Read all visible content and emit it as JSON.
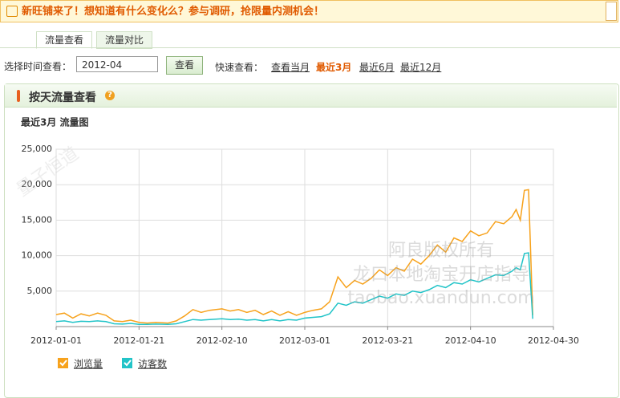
{
  "notice": "新旺铺来了！想知道有什么变化么？参与调研，抢限量内测机会！",
  "tabs": [
    "流量查看",
    "流量对比"
  ],
  "filter": {
    "label": "选择时间查看：",
    "month": "2012-04",
    "button": "查看",
    "quick_label": "快速查看：",
    "quick_links": [
      "查看当月",
      "最近3月",
      "最近6月",
      "最近12月"
    ]
  },
  "panel_title": "按天流量查看",
  "watermarks": [
    "阿良版权所有",
    "龙口本地淘宝开店指导",
    "taobao.xuandun.com",
    "量子恒道"
  ],
  "chart_data": {
    "type": "line",
    "title": "最近3月 流量图",
    "x": [
      "2012-01-01",
      "2012-01-03",
      "2012-01-05",
      "2012-01-07",
      "2012-01-09",
      "2012-01-11",
      "2012-01-13",
      "2012-01-15",
      "2012-01-17",
      "2012-01-19",
      "2012-01-21",
      "2012-01-23",
      "2012-01-25",
      "2012-01-28",
      "2012-01-30",
      "2012-02-01",
      "2012-02-03",
      "2012-02-05",
      "2012-02-07",
      "2012-02-10",
      "2012-02-12",
      "2012-02-14",
      "2012-02-16",
      "2012-02-18",
      "2012-02-20",
      "2012-02-22",
      "2012-02-24",
      "2012-02-26",
      "2012-02-28",
      "2012-03-01",
      "2012-03-03",
      "2012-03-05",
      "2012-03-07",
      "2012-03-09",
      "2012-03-11",
      "2012-03-13",
      "2012-03-15",
      "2012-03-17",
      "2012-03-19",
      "2012-03-21",
      "2012-03-23",
      "2012-03-25",
      "2012-03-27",
      "2012-03-29",
      "2012-03-31",
      "2012-04-02",
      "2012-04-04",
      "2012-04-06",
      "2012-04-08",
      "2012-04-10",
      "2012-04-12",
      "2012-04-14",
      "2012-04-16",
      "2012-04-18",
      "2012-04-20",
      "2012-04-21",
      "2012-04-22",
      "2012-04-23",
      "2012-04-24",
      "2012-04-25"
    ],
    "series": [
      {
        "name": "浏览量",
        "color": "#f7a21c",
        "values": [
          1700,
          1900,
          1200,
          1800,
          1500,
          1900,
          1600,
          800,
          700,
          900,
          600,
          500,
          600,
          500,
          800,
          1500,
          2400,
          2000,
          2300,
          2500,
          2200,
          2400,
          2000,
          2300,
          1700,
          2200,
          1600,
          2100,
          1600,
          2000,
          2300,
          2500,
          3500,
          7000,
          5500,
          6500,
          6000,
          6800,
          8000,
          7200,
          8300,
          7800,
          9500,
          8800,
          10000,
          11500,
          10500,
          12500,
          12000,
          13500,
          12800,
          13200,
          14800,
          14500,
          15500,
          16500,
          15000,
          19200,
          19300,
          1600
        ]
      },
      {
        "name": "访客数",
        "color": "#22c4c8",
        "values": [
          700,
          800,
          600,
          750,
          700,
          800,
          700,
          400,
          350,
          450,
          300,
          300,
          350,
          300,
          400,
          700,
          1000,
          900,
          1000,
          1100,
          1000,
          1050,
          900,
          1000,
          800,
          1000,
          800,
          1000,
          900,
          1200,
          1300,
          1400,
          1800,
          3300,
          3000,
          3500,
          3300,
          3800,
          4300,
          4000,
          4600,
          4400,
          5000,
          4800,
          5200,
          5800,
          5500,
          6200,
          6000,
          6600,
          6300,
          6800,
          7300,
          7200,
          7800,
          8300,
          8000,
          10300,
          10400,
          1100
        ]
      }
    ],
    "xlim": [
      "2012-01-01",
      "2012-04-30"
    ],
    "xticks": [
      "2012-01-01",
      "2012-01-21",
      "2012-02-10",
      "2012-03-01",
      "2012-03-21",
      "2012-04-10",
      "2012-04-30"
    ],
    "ylim": [
      0,
      25000
    ],
    "yticks": [
      {
        "value": 5000,
        "label": "5,000"
      },
      {
        "value": 10000,
        "label": "10,000"
      },
      {
        "value": 15000,
        "label": "15,000"
      },
      {
        "value": 20000,
        "label": "20,000"
      },
      {
        "value": 25000,
        "label": "25,000"
      }
    ],
    "grid": true
  }
}
